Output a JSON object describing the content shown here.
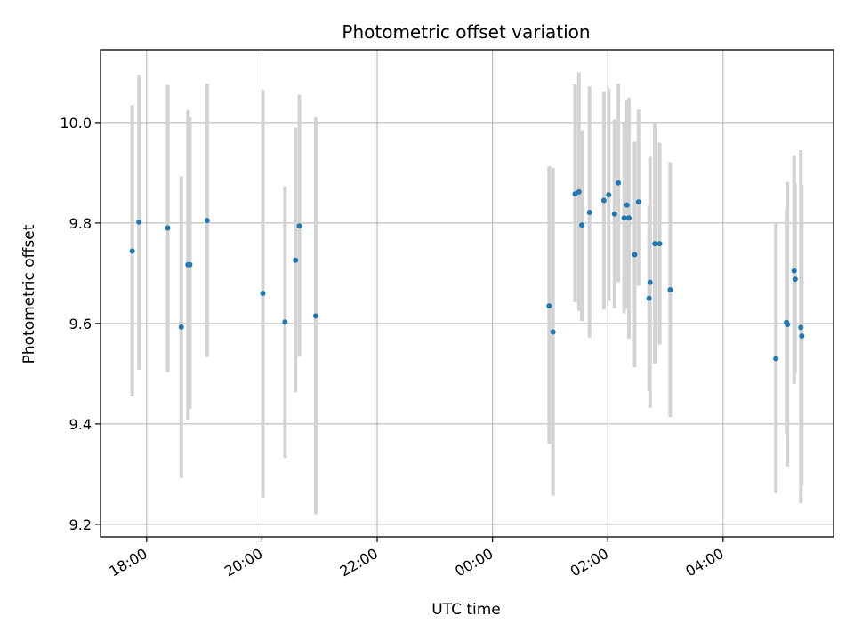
{
  "chart_data": {
    "type": "scatter",
    "title": "Photometric offset variation",
    "xlabel": "UTC time",
    "ylabel": "Photometric offset",
    "grid": true,
    "xlim": [
      "17:12",
      "05:55"
    ],
    "ylim": [
      9.175,
      10.145
    ],
    "x_ticks": [
      "18:00",
      "20:00",
      "22:00",
      "00:00",
      "02:00",
      "04:00"
    ],
    "y_ticks": [
      9.2,
      9.4,
      9.6,
      9.8,
      10.0
    ],
    "colors": {
      "points": "#1f77b4",
      "errorbars": "#d3d3d3",
      "grid": "#b0b0b0"
    },
    "points": [
      {
        "t": "17:45",
        "y": 9.744,
        "lo": 9.455,
        "hi": 10.035
      },
      {
        "t": "17:52",
        "y": 9.802,
        "lo": 9.508,
        "hi": 10.095
      },
      {
        "t": "18:22",
        "y": 9.79,
        "lo": 9.503,
        "hi": 10.075
      },
      {
        "t": "18:36",
        "y": 9.593,
        "lo": 9.292,
        "hi": 9.893
      },
      {
        "t": "18:43",
        "y": 9.717,
        "lo": 9.408,
        "hi": 10.025
      },
      {
        "t": "18:45",
        "y": 9.717,
        "lo": 9.43,
        "hi": 10.01
      },
      {
        "t": "19:03",
        "y": 9.805,
        "lo": 9.533,
        "hi": 10.078
      },
      {
        "t": "20:01",
        "y": 9.66,
        "lo": 9.253,
        "hi": 10.065
      },
      {
        "t": "20:24",
        "y": 9.603,
        "lo": 9.332,
        "hi": 9.873
      },
      {
        "t": "20:35",
        "y": 9.726,
        "lo": 9.463,
        "hi": 9.99
      },
      {
        "t": "20:39",
        "y": 9.794,
        "lo": 9.535,
        "hi": 10.055
      },
      {
        "t": "20:56",
        "y": 9.615,
        "lo": 9.22,
        "hi": 10.01
      },
      {
        "t": "00:59",
        "y": 9.635,
        "lo": 9.36,
        "hi": 9.913
      },
      {
        "t": "01:03",
        "y": 9.583,
        "lo": 9.257,
        "hi": 9.91
      },
      {
        "t": "01:26",
        "y": 9.858,
        "lo": 9.642,
        "hi": 10.076
      },
      {
        "t": "01:30",
        "y": 9.862,
        "lo": 9.625,
        "hi": 10.1
      },
      {
        "t": "01:33",
        "y": 9.796,
        "lo": 9.605,
        "hi": 9.985
      },
      {
        "t": "01:41",
        "y": 9.821,
        "lo": 9.572,
        "hi": 10.072
      },
      {
        "t": "01:56",
        "y": 9.845,
        "lo": 9.628,
        "hi": 10.062
      },
      {
        "t": "02:01",
        "y": 9.856,
        "lo": 9.645,
        "hi": 10.068
      },
      {
        "t": "02:07",
        "y": 9.818,
        "lo": 9.63,
        "hi": 10.006
      },
      {
        "t": "02:11",
        "y": 9.88,
        "lo": 9.682,
        "hi": 10.078
      },
      {
        "t": "02:17",
        "y": 9.81,
        "lo": 9.62,
        "hi": 10.0
      },
      {
        "t": "02:20",
        "y": 9.836,
        "lo": 9.63,
        "hi": 10.045
      },
      {
        "t": "02:22",
        "y": 9.81,
        "lo": 9.57,
        "hi": 10.05
      },
      {
        "t": "02:28",
        "y": 9.737,
        "lo": 9.513,
        "hi": 9.962
      },
      {
        "t": "02:32",
        "y": 9.842,
        "lo": 9.675,
        "hi": 10.026
      },
      {
        "t": "02:43",
        "y": 9.65,
        "lo": 9.465,
        "hi": 9.835
      },
      {
        "t": "02:44",
        "y": 9.682,
        "lo": 9.432,
        "hi": 9.932
      },
      {
        "t": "02:49",
        "y": 9.759,
        "lo": 9.52,
        "hi": 9.998
      },
      {
        "t": "02:54",
        "y": 9.759,
        "lo": 9.558,
        "hi": 9.96
      },
      {
        "t": "03:05",
        "y": 9.667,
        "lo": 9.414,
        "hi": 9.921
      },
      {
        "t": "04:55",
        "y": 9.53,
        "lo": 9.262,
        "hi": 9.8
      },
      {
        "t": "05:06",
        "y": 9.602,
        "lo": 9.38,
        "hi": 9.825
      },
      {
        "t": "05:07",
        "y": 9.598,
        "lo": 9.315,
        "hi": 9.882
      },
      {
        "t": "05:14",
        "y": 9.705,
        "lo": 9.48,
        "hi": 9.935
      },
      {
        "t": "05:15",
        "y": 9.688,
        "lo": 9.5,
        "hi": 9.878
      },
      {
        "t": "05:21",
        "y": 9.592,
        "lo": 9.242,
        "hi": 9.945
      },
      {
        "t": "05:22",
        "y": 9.575,
        "lo": 9.278,
        "hi": 9.875
      }
    ]
  }
}
